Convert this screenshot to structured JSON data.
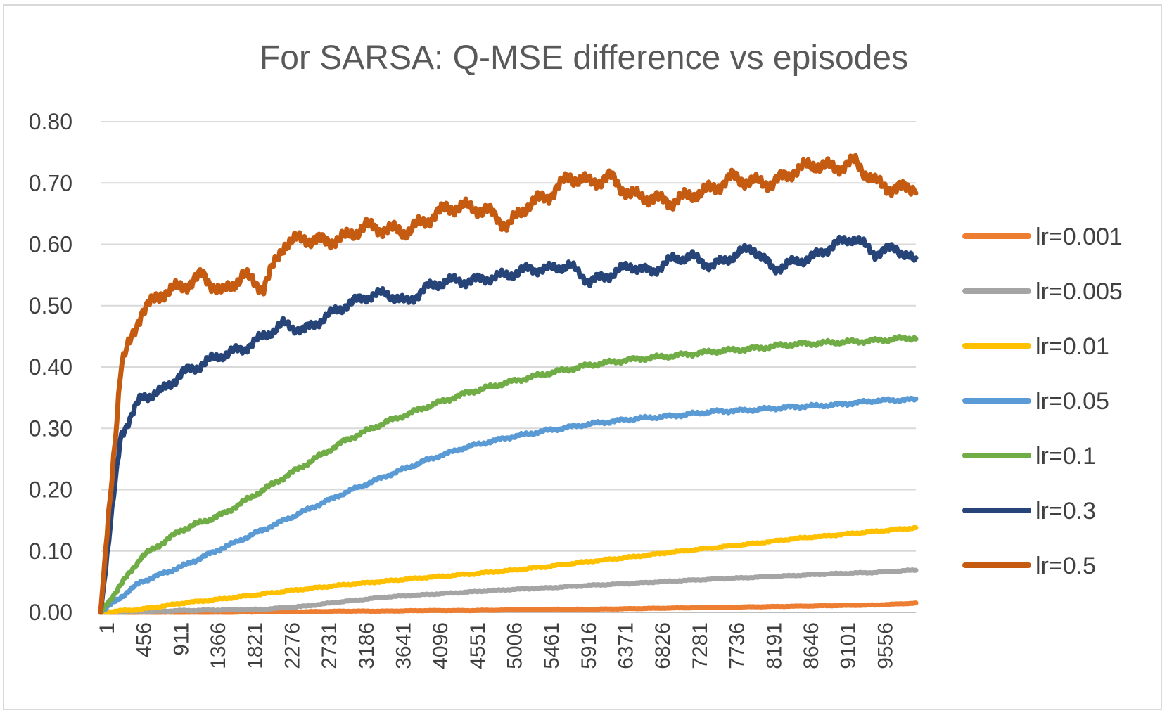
{
  "chart_data": {
    "type": "line",
    "title": "For SARSA: Q-MSE difference vs episodes",
    "xlabel": "",
    "ylabel": "",
    "ylim": [
      0,
      0.8
    ],
    "yticks": [
      "0.00",
      "0.10",
      "0.20",
      "0.30",
      "0.40",
      "0.50",
      "0.60",
      "0.70",
      "0.80"
    ],
    "xlim": [
      1,
      10000
    ],
    "xticks": [
      "1",
      "456",
      "911",
      "1366",
      "1821",
      "2276",
      "2731",
      "3186",
      "3641",
      "4096",
      "4551",
      "5006",
      "5461",
      "5916",
      "6371",
      "6826",
      "7281",
      "7736",
      "8191",
      "8646",
      "9101",
      "9556"
    ],
    "grid": true,
    "legend_position": "right",
    "series": [
      {
        "name": "lr=0.001",
        "color": "#ed7d31",
        "x": [
          1,
          500,
          1000,
          1500,
          2000,
          2500,
          3000,
          3500,
          4000,
          4500,
          5000,
          5500,
          6000,
          6500,
          7000,
          7500,
          8000,
          8500,
          9000,
          9500,
          10000
        ],
        "values": [
          0,
          0,
          0,
          0,
          0.001,
          0.001,
          0.002,
          0.002,
          0.003,
          0.003,
          0.004,
          0.005,
          0.005,
          0.006,
          0.007,
          0.008,
          0.009,
          0.01,
          0.011,
          0.012,
          0.015
        ]
      },
      {
        "name": "lr=0.005",
        "color": "#a5a5a5",
        "x": [
          1,
          500,
          1000,
          1500,
          2000,
          2500,
          3000,
          3500,
          4000,
          4500,
          5000,
          5500,
          6000,
          6500,
          7000,
          7500,
          8000,
          8500,
          9000,
          9500,
          10000
        ],
        "values": [
          0,
          0.001,
          0.003,
          0.004,
          0.005,
          0.01,
          0.018,
          0.025,
          0.029,
          0.033,
          0.037,
          0.04,
          0.044,
          0.047,
          0.051,
          0.054,
          0.057,
          0.06,
          0.063,
          0.065,
          0.069
        ]
      },
      {
        "name": "lr=0.01",
        "color": "#ffc000",
        "x": [
          1,
          500,
          1000,
          1500,
          2000,
          2500,
          3000,
          3500,
          4000,
          4500,
          5000,
          5500,
          6000,
          6500,
          7000,
          7500,
          8000,
          8500,
          9000,
          9500,
          10000
        ],
        "values": [
          0,
          0.005,
          0.015,
          0.022,
          0.03,
          0.038,
          0.045,
          0.051,
          0.057,
          0.062,
          0.068,
          0.075,
          0.083,
          0.09,
          0.098,
          0.105,
          0.112,
          0.12,
          0.126,
          0.132,
          0.138
        ]
      },
      {
        "name": "lr=0.05",
        "color": "#5b9bd5",
        "x": [
          1,
          500,
          1000,
          1500,
          2000,
          2500,
          3000,
          3500,
          4000,
          4500,
          5000,
          5500,
          6000,
          6500,
          7000,
          7500,
          8000,
          8500,
          9000,
          9500,
          10000
        ],
        "values": [
          0,
          0.05,
          0.075,
          0.105,
          0.135,
          0.165,
          0.195,
          0.222,
          0.248,
          0.27,
          0.285,
          0.297,
          0.307,
          0.315,
          0.32,
          0.327,
          0.33,
          0.335,
          0.338,
          0.345,
          0.347
        ]
      },
      {
        "name": "lr=0.1",
        "color": "#70ad47",
        "x": [
          1,
          500,
          1000,
          1500,
          2000,
          2500,
          3000,
          3500,
          4000,
          4500,
          5000,
          5500,
          6000,
          6500,
          7000,
          7500,
          8000,
          8500,
          9000,
          9500,
          10000
        ],
        "values": [
          0,
          0.09,
          0.135,
          0.16,
          0.2,
          0.24,
          0.28,
          0.31,
          0.335,
          0.358,
          0.375,
          0.39,
          0.403,
          0.412,
          0.418,
          0.425,
          0.43,
          0.437,
          0.44,
          0.443,
          0.448
        ]
      },
      {
        "name": "lr=0.3",
        "color": "#264478",
        "x": [
          1,
          250,
          500,
          750,
          1000,
          1250,
          1500,
          1750,
          2000,
          2250,
          2500,
          2750,
          3000,
          3250,
          3500,
          3750,
          4000,
          4250,
          4500,
          4750,
          5000,
          5250,
          5500,
          5750,
          6000,
          6250,
          6500,
          6750,
          7000,
          7250,
          7500,
          7750,
          8000,
          8250,
          8500,
          8750,
          9000,
          9250,
          9500,
          9750,
          10000
        ],
        "values": [
          0,
          0.29,
          0.35,
          0.36,
          0.39,
          0.405,
          0.42,
          0.43,
          0.45,
          0.47,
          0.46,
          0.48,
          0.5,
          0.515,
          0.52,
          0.505,
          0.53,
          0.54,
          0.54,
          0.545,
          0.55,
          0.56,
          0.56,
          0.565,
          0.54,
          0.55,
          0.565,
          0.555,
          0.575,
          0.58,
          0.565,
          0.58,
          0.595,
          0.56,
          0.57,
          0.58,
          0.6,
          0.61,
          0.585,
          0.595,
          0.57
        ]
      },
      {
        "name": "lr=0.5",
        "color": "#c55a11",
        "x": [
          1,
          250,
          500,
          750,
          1000,
          1250,
          1500,
          1750,
          2000,
          2250,
          2500,
          2750,
          3000,
          3250,
          3500,
          3750,
          4000,
          4250,
          4500,
          4750,
          5000,
          5250,
          5500,
          5750,
          6000,
          6250,
          6500,
          6750,
          7000,
          7250,
          7500,
          7750,
          8000,
          8250,
          8500,
          8750,
          9000,
          9250,
          9500,
          9750,
          10000
        ],
        "values": [
          0,
          0.4,
          0.49,
          0.52,
          0.53,
          0.55,
          0.52,
          0.55,
          0.53,
          0.6,
          0.61,
          0.605,
          0.61,
          0.63,
          0.625,
          0.62,
          0.64,
          0.66,
          0.66,
          0.655,
          0.63,
          0.665,
          0.68,
          0.71,
          0.7,
          0.71,
          0.68,
          0.675,
          0.67,
          0.68,
          0.69,
          0.71,
          0.7,
          0.7,
          0.72,
          0.73,
          0.725,
          0.735,
          0.7,
          0.69,
          0.695
        ]
      }
    ]
  }
}
